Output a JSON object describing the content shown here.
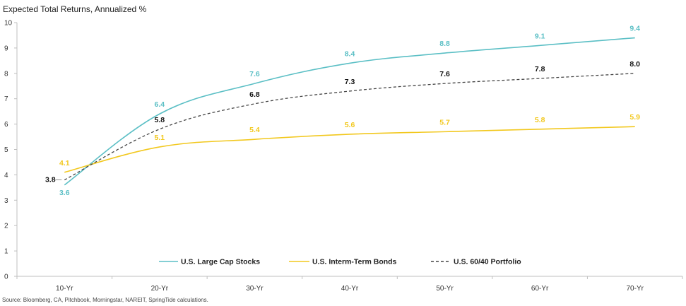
{
  "chart_data": {
    "type": "line",
    "title": "Expected Total Returns, Annualized %",
    "source": "Source: Bloomberg, CA, Pitchbook, Morningstar, NAREIT, SpringTide calculations.",
    "categories": [
      "10-Yr",
      "20-Yr",
      "30-Yr",
      "40-Yr",
      "50-Yr",
      "60-Yr",
      "70-Yr"
    ],
    "ylim": [
      0,
      10
    ],
    "yticks": [
      "0",
      "1",
      "2",
      "3",
      "4",
      "5",
      "6",
      "7",
      "8",
      "9",
      "10"
    ],
    "grid": false,
    "legend_placement": "bottom-center",
    "series": [
      {
        "name": "U.S. Large Cap Stocks",
        "color": "#5bbfc5",
        "dashed": false,
        "values": [
          3.6,
          6.4,
          7.6,
          8.4,
          8.8,
          9.1,
          9.4
        ],
        "labels": [
          "3.6",
          "6.4",
          "7.6",
          "8.4",
          "8.8",
          "9.1",
          "9.4"
        ]
      },
      {
        "name": "U.S. Interm-Term Bonds",
        "color": "#f2c81e",
        "dashed": false,
        "values": [
          4.1,
          5.1,
          5.4,
          5.6,
          5.7,
          5.8,
          5.9
        ],
        "labels": [
          "4.1",
          "5.1",
          "5.4",
          "5.6",
          "5.7",
          "5.8",
          "5.9"
        ]
      },
      {
        "name": "U.S. 60/40 Portfolio",
        "color": "#444444",
        "dashed": true,
        "values": [
          3.8,
          5.8,
          6.8,
          7.3,
          7.6,
          7.8,
          8.0
        ],
        "labels": [
          "3.8",
          "5.8",
          "6.8",
          "7.3",
          "7.6",
          "7.8",
          "8.0"
        ]
      }
    ]
  }
}
